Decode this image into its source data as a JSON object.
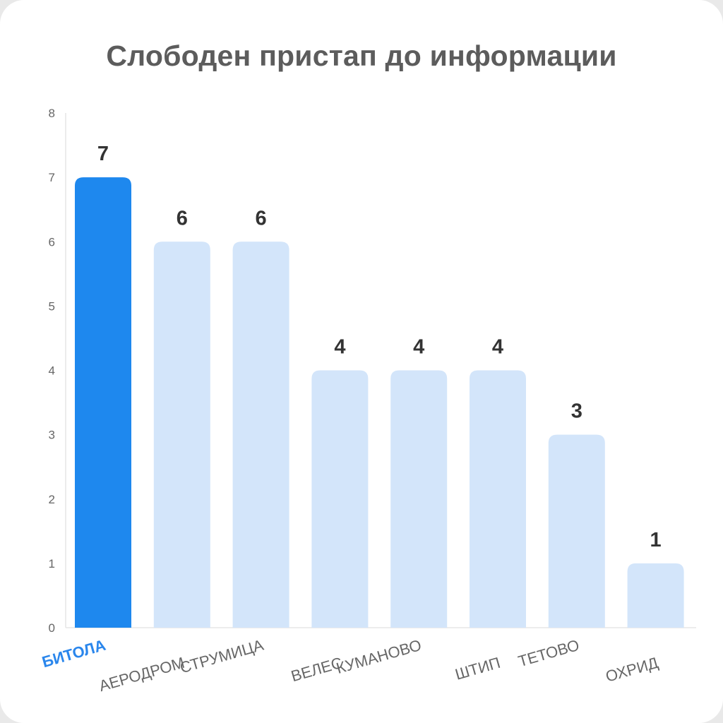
{
  "chart_data": {
    "type": "bar",
    "title": "Слободен пристап до информации",
    "categories": [
      "БИТОЛА",
      "АЕРОДРОМ",
      "СТРУМИЦА",
      "ВЕЛЕС",
      "КУМАНОВО",
      "ШТИП",
      "ТЕТОВО",
      "ОХРИД"
    ],
    "values": [
      7,
      6,
      6,
      4,
      4,
      4,
      3,
      1
    ],
    "highlighted_category": "БИТОЛА",
    "ylim": [
      0,
      8
    ],
    "yticks": [
      0,
      1,
      2,
      3,
      4,
      5,
      6,
      7,
      8
    ],
    "xlabel": "",
    "ylabel": "",
    "grid": false,
    "legend": "none",
    "colors": {
      "highlight_bar": "#1e88ee",
      "bar": "#d3e5fa",
      "highlight_label": "#2a86ec",
      "label": "#666666",
      "value_label": "#333333",
      "title": "#5c5c5c",
      "axis": "#e6e6e6"
    }
  }
}
